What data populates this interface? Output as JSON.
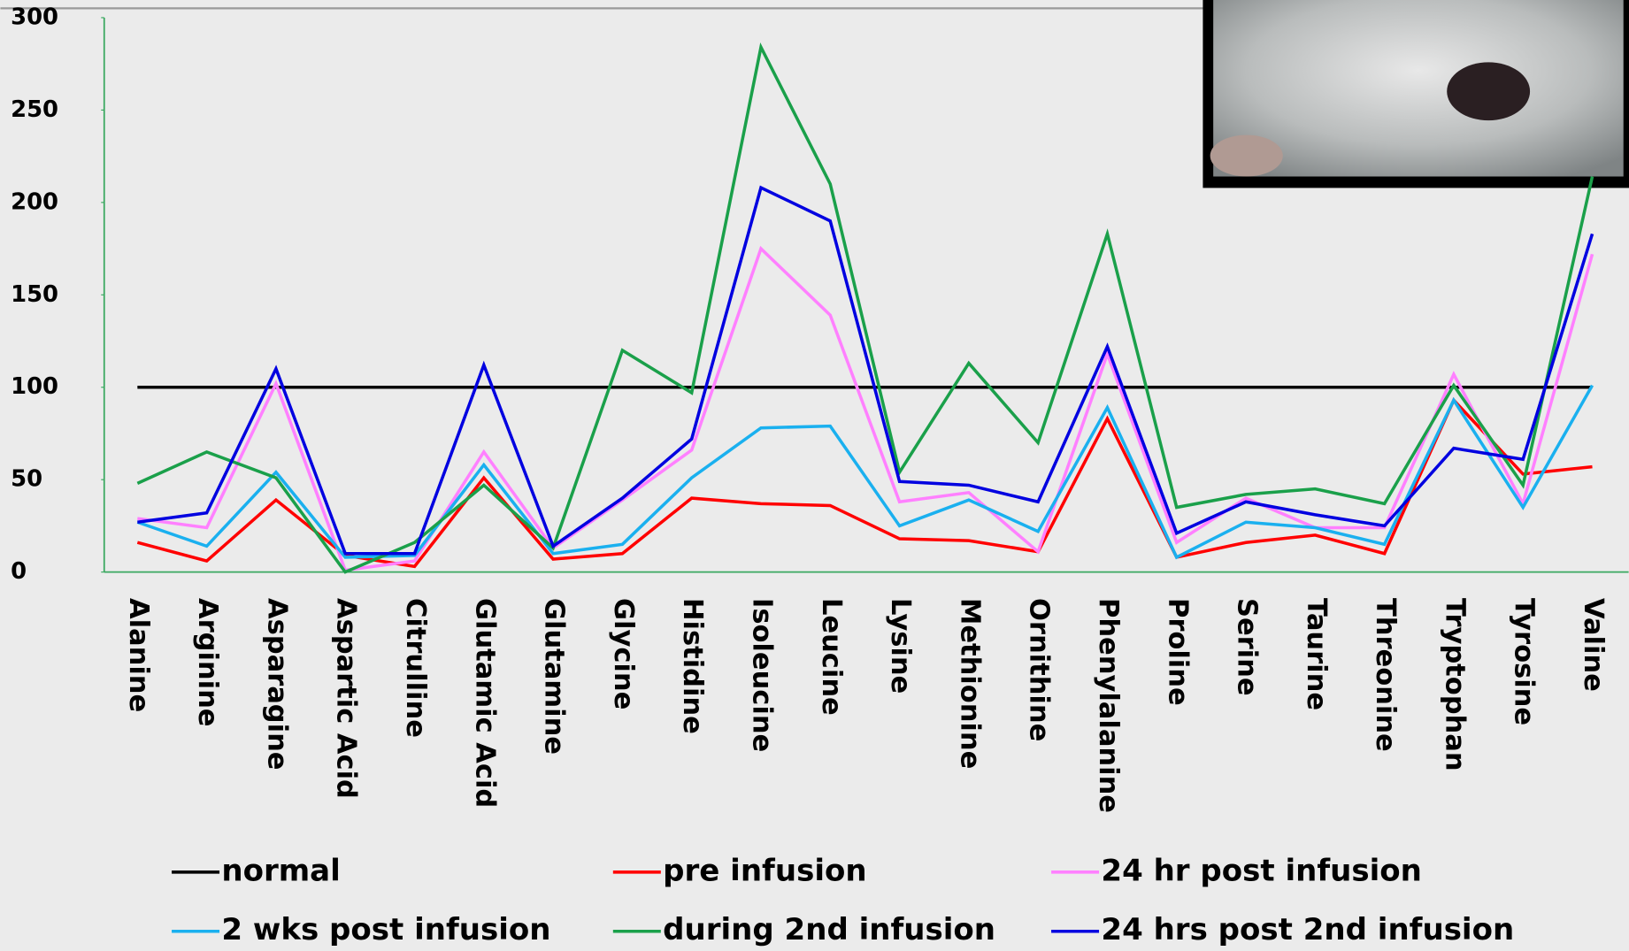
{
  "chart_data": {
    "type": "line",
    "categories": [
      "Alanine",
      "Arginine",
      "Asparagine",
      "Aspartic Acid",
      "Citrulline",
      "Glutamic Acid",
      "Glutamine",
      "Glycine",
      "Histidine",
      "Isoleucine",
      "Leucine",
      "Lysine",
      "Methionine",
      "Ornithine",
      "Phenylalanine",
      "Proline",
      "Serine",
      "Taurine",
      "Threonine",
      "Tryptophan",
      "Tyrosine",
      "Valine"
    ],
    "series": [
      {
        "name": "normal",
        "color": "#000000",
        "values": [
          100,
          100,
          100,
          100,
          100,
          100,
          100,
          100,
          100,
          100,
          100,
          100,
          100,
          100,
          100,
          100,
          100,
          100,
          100,
          100,
          100,
          100
        ]
      },
      {
        "name": "pre infusion",
        "color": "#ff0000",
        "values": [
          16,
          6,
          39,
          9,
          3,
          51,
          7,
          10,
          40,
          37,
          36,
          18,
          17,
          11,
          83,
          8,
          16,
          20,
          10,
          93,
          53,
          57
        ]
      },
      {
        "name": "24 hr post infusion",
        "color": "#ff80ff",
        "values": [
          29,
          24,
          102,
          1,
          6,
          65,
          13,
          39,
          66,
          175,
          139,
          38,
          43,
          11,
          118,
          16,
          40,
          24,
          24,
          107,
          37,
          172
        ]
      },
      {
        "name": "2 wks post infusion",
        "color": "#1ab0ef",
        "values": [
          27,
          14,
          54,
          8,
          9,
          58,
          10,
          15,
          51,
          78,
          79,
          25,
          39,
          22,
          89,
          8,
          27,
          24,
          15,
          93,
          35,
          101
        ]
      },
      {
        "name": "during 2nd infusion",
        "color": "#1aa04a",
        "values": [
          48,
          65,
          51,
          0,
          16,
          47,
          13,
          120,
          97,
          284,
          210,
          54,
          113,
          70,
          183,
          35,
          42,
          45,
          37,
          101,
          47,
          214
        ]
      },
      {
        "name": "24 hrs post 2nd infusion",
        "color": "#0000e0",
        "values": [
          27,
          32,
          110,
          10,
          10,
          112,
          14,
          40,
          72,
          208,
          190,
          49,
          47,
          38,
          122,
          21,
          38,
          31,
          25,
          67,
          61,
          183
        ]
      }
    ],
    "ylim": [
      0,
      300
    ],
    "yticks": [
      0,
      50,
      100,
      150,
      200,
      250,
      300
    ],
    "legend": "bottom"
  }
}
